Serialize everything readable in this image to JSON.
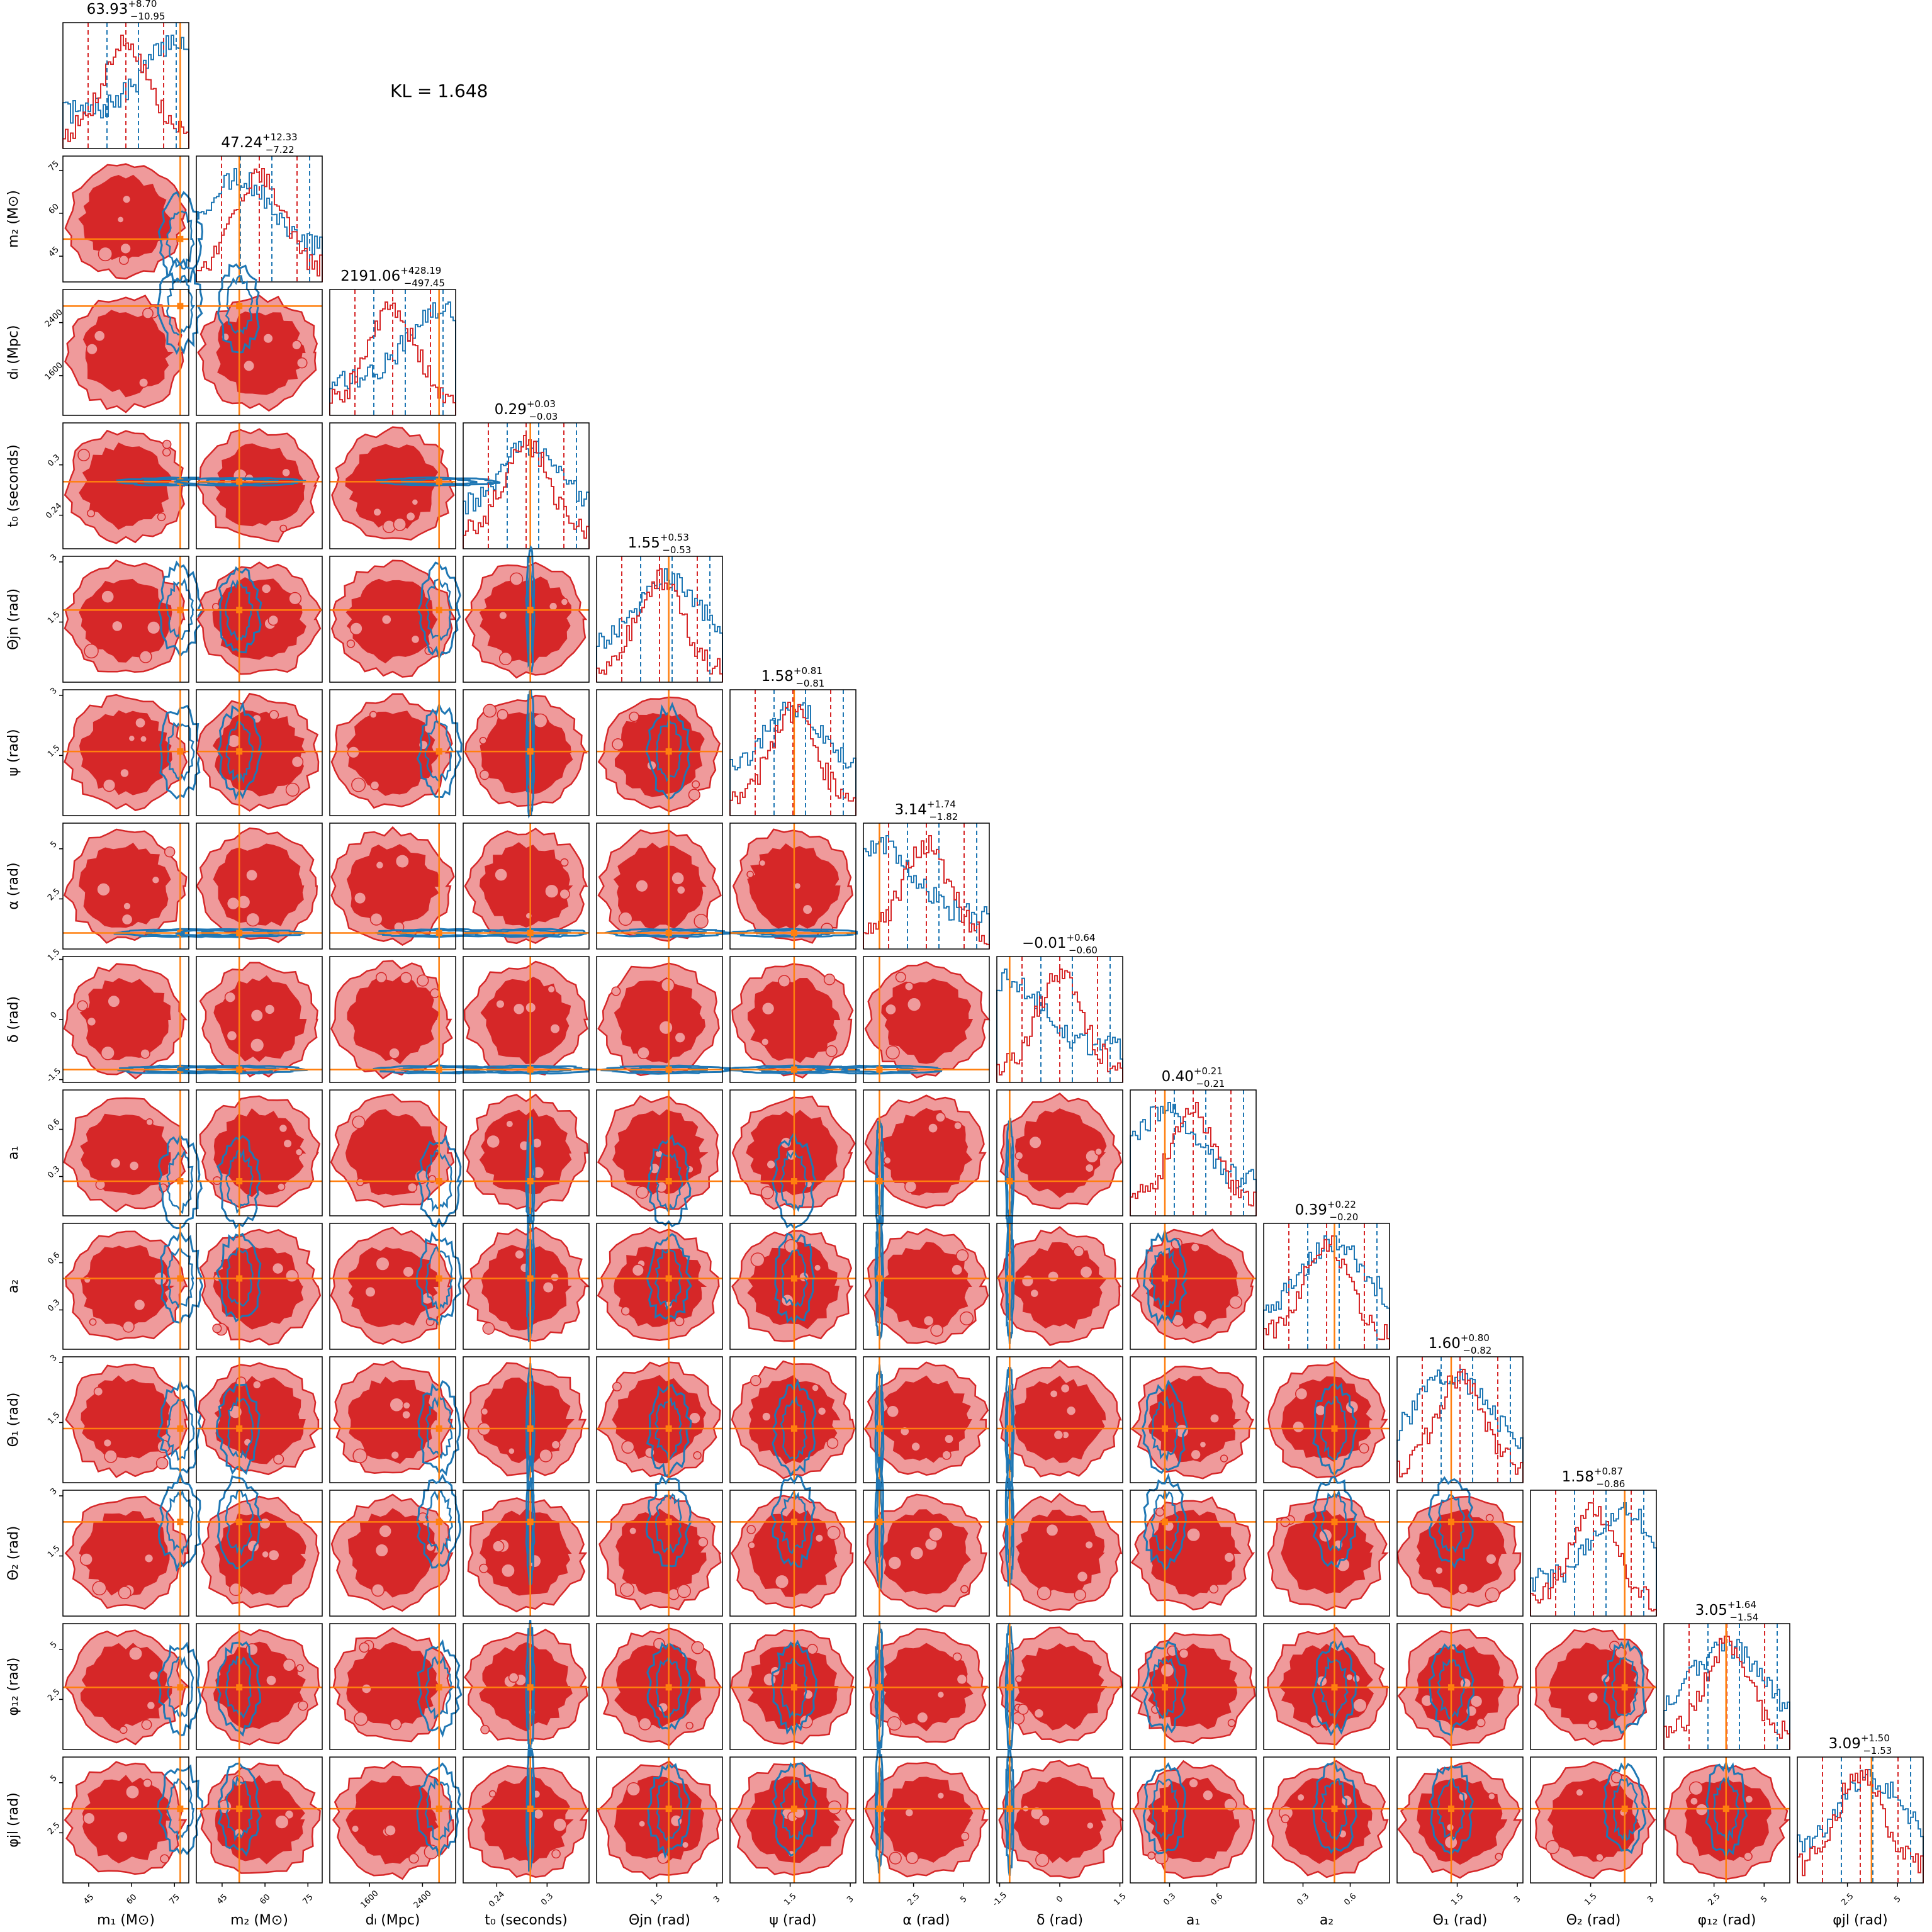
{
  "kl_text": "KL = 1.648",
  "colors": {
    "posterior_a": "#d62728",
    "posterior_a_fill": "#ef9a9b",
    "posterior_b": "#1f77b4",
    "truth": "#ff7f0e"
  },
  "chart_data": {
    "type": "corner",
    "parameters": [
      {
        "id": "m1",
        "label": "m₁ (M⊙)",
        "range": [
          36,
          80
        ],
        "ticks": [
          45,
          60,
          75
        ],
        "truth": 77,
        "summary": {
          "median": "63.93",
          "plus": "+8.70",
          "minus": "−10.95"
        }
      },
      {
        "id": "m2",
        "label": "m₂ (M⊙)",
        "range": [
          36,
          80
        ],
        "ticks": [
          45,
          60,
          75
        ],
        "truth": 51,
        "summary": {
          "median": "47.24",
          "plus": "+12.33",
          "minus": "−7.22"
        }
      },
      {
        "id": "dL",
        "label": "dₗ (Mpc)",
        "range": [
          1000,
          2900
        ],
        "ticks": [
          1600,
          2400
        ],
        "truth": 2650,
        "summary": {
          "median": "2191.06",
          "plus": "+428.19",
          "minus": "−497.45"
        }
      },
      {
        "id": "t0",
        "label": "t₀ (seconds)",
        "range": [
          0.2,
          0.35
        ],
        "ticks": [
          0.24,
          0.3
        ],
        "truth": 0.28,
        "summary": {
          "median": "0.29",
          "plus": "+0.03",
          "minus": "−0.03"
        }
      },
      {
        "id": "thetajn",
        "label": "Θjn (rad)",
        "range": [
          0,
          3.14
        ],
        "ticks": [
          1.5,
          3.0
        ],
        "truth": 1.8,
        "summary": {
          "median": "1.55",
          "plus": "+0.53",
          "minus": "−0.53"
        }
      },
      {
        "id": "psi",
        "label": "ψ (rad)",
        "range": [
          0,
          3.14
        ],
        "ticks": [
          1.5,
          3.0
        ],
        "truth": 1.6,
        "summary": {
          "median": "1.58",
          "plus": "+0.81",
          "minus": "−0.81"
        }
      },
      {
        "id": "alpha",
        "label": "α (rad)",
        "range": [
          0,
          6.28
        ],
        "ticks": [
          2.5,
          5.0
        ],
        "truth": 0.8,
        "summary": {
          "median": "3.14",
          "plus": "+1.74",
          "minus": "−1.82"
        }
      },
      {
        "id": "delta",
        "label": "δ (rad)",
        "range": [
          -1.57,
          1.57
        ],
        "ticks": [
          -1.5,
          0.0,
          1.5
        ],
        "truth": -1.25,
        "summary": {
          "median": "−0.01",
          "plus": "+0.64",
          "minus": "−0.60"
        }
      },
      {
        "id": "a1",
        "label": "a₁",
        "range": [
          0.05,
          0.85
        ],
        "ticks": [
          0.3,
          0.6
        ],
        "truth": 0.27,
        "summary": {
          "median": "0.40",
          "plus": "+0.21",
          "minus": "−0.21"
        }
      },
      {
        "id": "a2",
        "label": "a₂",
        "range": [
          0.05,
          0.85
        ],
        "ticks": [
          0.3,
          0.6
        ],
        "truth": 0.5,
        "summary": {
          "median": "0.39",
          "plus": "+0.22",
          "minus": "−0.20"
        }
      },
      {
        "id": "theta1",
        "label": "Θ₁ (rad)",
        "range": [
          0,
          3.14
        ],
        "ticks": [
          1.5,
          3.0
        ],
        "truth": 1.35,
        "summary": {
          "median": "1.60",
          "plus": "+0.80",
          "minus": "−0.82"
        }
      },
      {
        "id": "theta2",
        "label": "Θ₂ (rad)",
        "range": [
          0,
          3.14
        ],
        "ticks": [
          1.5,
          3.0
        ],
        "truth": 2.35,
        "summary": {
          "median": "1.58",
          "plus": "+0.87",
          "minus": "−0.86"
        }
      },
      {
        "id": "phi12",
        "label": "φ₁₂ (rad)",
        "range": [
          0,
          6.28
        ],
        "ticks": [
          2.5,
          5.0
        ],
        "truth": 3.1,
        "summary": {
          "median": "3.05",
          "plus": "+1.64",
          "minus": "−1.54"
        }
      },
      {
        "id": "phijl",
        "label": "φjl (rad)",
        "range": [
          0,
          6.28
        ],
        "ticks": [
          2.5,
          5.0
        ],
        "truth": 3.7,
        "summary": {
          "median": "3.09",
          "plus": "+1.50",
          "minus": "−1.53"
        }
      }
    ],
    "series": [
      {
        "role": "posterior_a",
        "color": "#d62728"
      },
      {
        "role": "posterior_b",
        "color": "#1f77b4"
      }
    ],
    "grid": false,
    "legend": "none"
  }
}
